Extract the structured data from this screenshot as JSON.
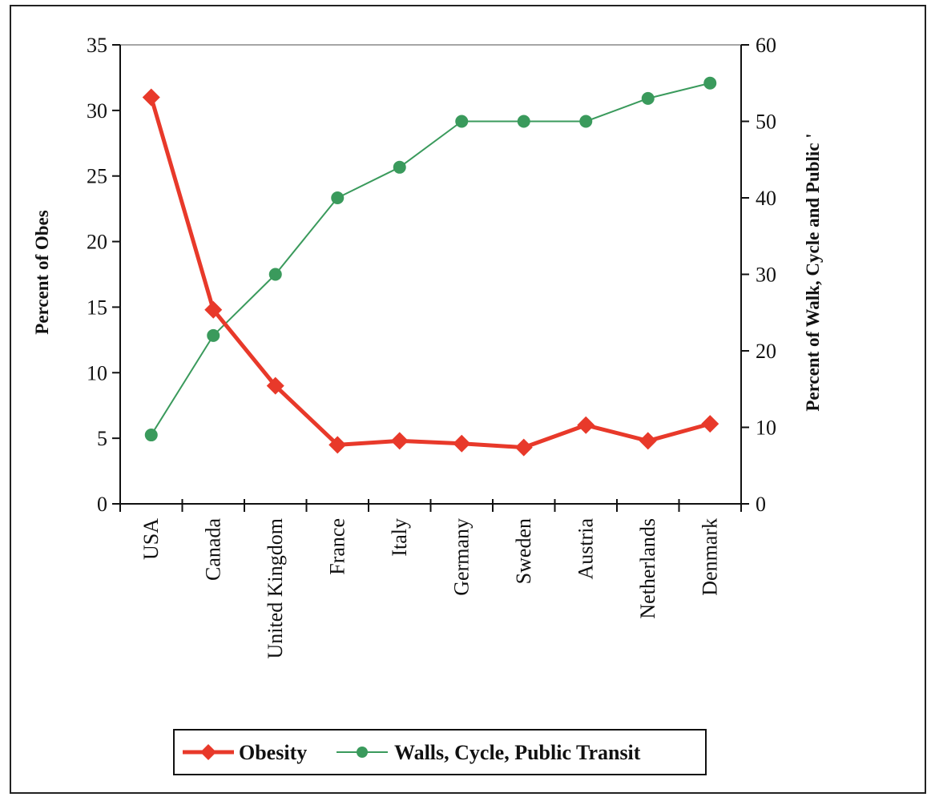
{
  "chart_data": {
    "type": "line",
    "categories": [
      "USA",
      "Canada",
      "United Kingdom",
      "France",
      "Italy",
      "Germany",
      "Sweden",
      "Austria",
      "Netherlands",
      "Denmark"
    ],
    "series": [
      {
        "name": "Obesity",
        "axis": "left",
        "color": "#e8392a",
        "marker": "diamond",
        "values": [
          31.0,
          14.8,
          9.0,
          4.5,
          4.8,
          4.6,
          4.3,
          6.0,
          4.8,
          6.1
        ]
      },
      {
        "name": "Walls, Cycle, Public Transit",
        "axis": "right",
        "color": "#3a9a5c",
        "marker": "circle",
        "values": [
          9,
          22,
          30,
          40,
          44,
          50,
          50,
          50,
          53,
          55
        ]
      }
    ],
    "left_axis": {
      "label": "Percent of Obes",
      "ylim": [
        0,
        35
      ],
      "ticks": [
        "0",
        "5",
        "10",
        "15",
        "20",
        "25",
        "30",
        "35"
      ]
    },
    "right_axis": {
      "label": "Percent of Walk, Cycle and Public '",
      "ylim": [
        0,
        60
      ],
      "ticks": [
        "0",
        "10",
        "20",
        "30",
        "40",
        "50",
        "60"
      ]
    },
    "grid": false,
    "legend_position": "bottom"
  }
}
